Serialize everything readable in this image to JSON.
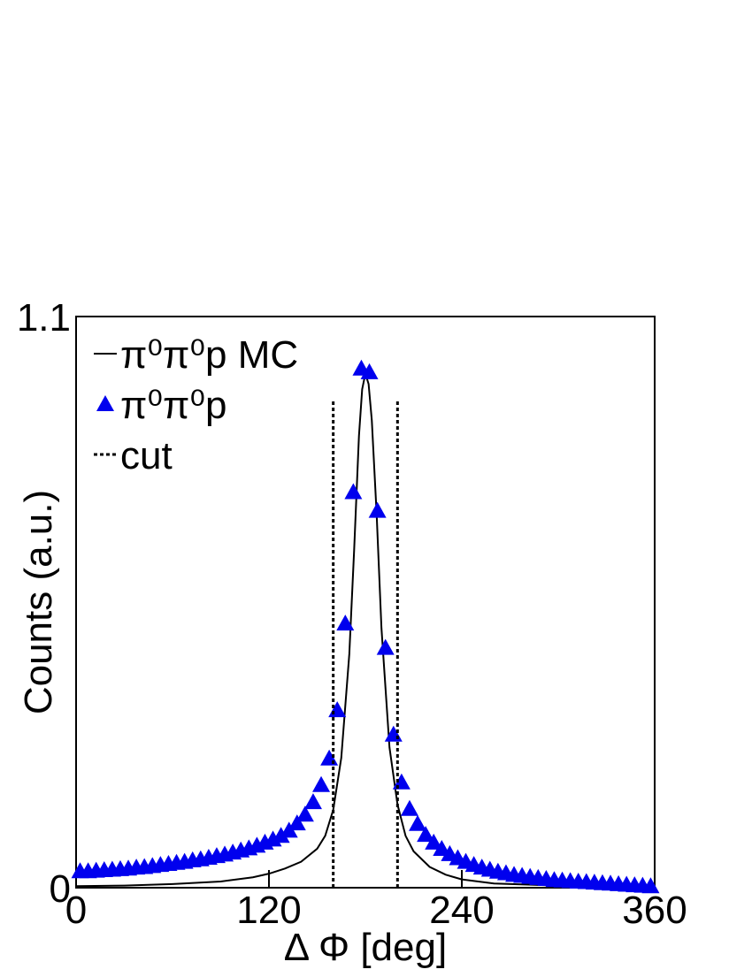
{
  "chart_data": {
    "type": "scatter",
    "xlabel": "Δ Φ [deg]",
    "ylabel": "Counts (a.u.)",
    "xlim": [
      0,
      360
    ],
    "xticks": [
      0,
      120,
      240,
      360
    ],
    "ylim": [
      0,
      1.1
    ],
    "yticks": [
      0,
      1.1
    ],
    "series": [
      {
        "name": "π⁰π⁰p MC",
        "color": "#000000",
        "style": "line",
        "x": [
          0,
          30,
          60,
          90,
          110,
          120,
          130,
          140,
          150,
          155,
          160,
          165,
          170,
          173,
          176,
          178,
          180,
          182,
          184,
          187,
          190,
          195,
          200,
          205,
          210,
          220,
          230,
          240,
          260,
          300,
          360
        ],
        "values": [
          0.003,
          0.004,
          0.007,
          0.012,
          0.02,
          0.027,
          0.037,
          0.05,
          0.075,
          0.1,
          0.15,
          0.25,
          0.45,
          0.65,
          0.87,
          0.96,
          0.99,
          0.97,
          0.9,
          0.72,
          0.5,
          0.27,
          0.16,
          0.1,
          0.07,
          0.04,
          0.025,
          0.016,
          0.008,
          0.004,
          0.002
        ]
      },
      {
        "name": "π⁰π⁰p",
        "color": "#0000ee",
        "style": "triangle",
        "x": [
          2.5,
          7.5,
          12.5,
          17.5,
          22.5,
          27.5,
          32.5,
          37.5,
          42.5,
          47.5,
          52.5,
          57.5,
          62.5,
          67.5,
          72.5,
          77.5,
          82.5,
          87.5,
          92.5,
          97.5,
          102.5,
          107.5,
          112.5,
          117.5,
          122.5,
          127.5,
          132.5,
          137.5,
          142.5,
          147.5,
          152.5,
          157.5,
          162.5,
          167.5,
          172.5,
          177.5,
          182.5,
          187.5,
          192.5,
          197.5,
          202.5,
          207.5,
          212.5,
          217.5,
          222.5,
          227.5,
          232.5,
          237.5,
          242.5,
          247.5,
          252.5,
          257.5,
          262.5,
          267.5,
          272.5,
          277.5,
          282.5,
          287.5,
          292.5,
          297.5,
          302.5,
          307.5,
          312.5,
          317.5,
          322.5,
          327.5,
          332.5,
          337.5,
          342.5,
          347.5,
          352.5,
          357.5
        ],
        "values": [
          0.032,
          0.032,
          0.033,
          0.034,
          0.035,
          0.036,
          0.037,
          0.039,
          0.04,
          0.042,
          0.044,
          0.046,
          0.048,
          0.05,
          0.053,
          0.055,
          0.058,
          0.061,
          0.064,
          0.068,
          0.072,
          0.076,
          0.081,
          0.087,
          0.093,
          0.1,
          0.11,
          0.124,
          0.141,
          0.165,
          0.198,
          0.249,
          0.342,
          0.509,
          0.762,
          1.0,
          0.993,
          0.726,
          0.462,
          0.295,
          0.203,
          0.152,
          0.123,
          0.102,
          0.087,
          0.075,
          0.065,
          0.057,
          0.05,
          0.044,
          0.039,
          0.035,
          0.031,
          0.028,
          0.025,
          0.023,
          0.021,
          0.019,
          0.017,
          0.015,
          0.014,
          0.013,
          0.012,
          0.011,
          0.01,
          0.009,
          0.008,
          0.007,
          0.006,
          0.005,
          0.004,
          0.003
        ]
      },
      {
        "name": "cut",
        "color": "#000000",
        "style": "dotted",
        "x": [
          160,
          200
        ],
        "values": [
          0.94,
          0.94
        ]
      }
    ]
  }
}
